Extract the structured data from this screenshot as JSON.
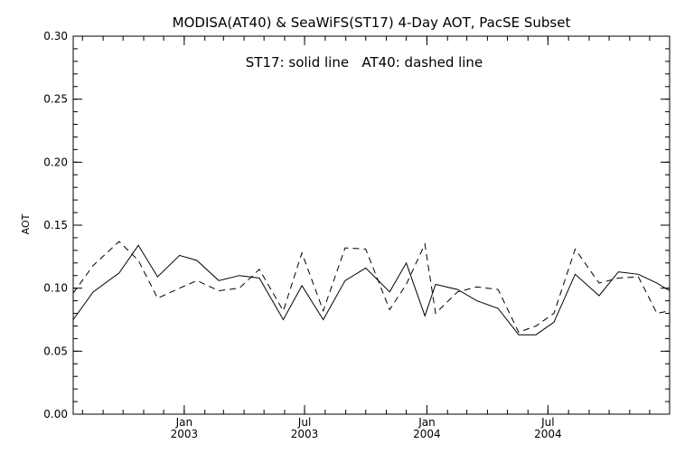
{
  "chart_data": {
    "type": "line",
    "title": "MODISA(AT40) & SeaWiFS(ST17) 4-Day AOT, PacSE Subset",
    "annotation": "ST17: solid line   AT40: dashed line",
    "ylabel": "AOT",
    "xlabel": "",
    "ylim": [
      0.0,
      0.3
    ],
    "yticks": [
      "0.00",
      "0.05",
      "0.10",
      "0.15",
      "0.20",
      "0.25",
      "0.30"
    ],
    "xlim": [
      "2002-07-18",
      "2004-12-31"
    ],
    "xticks": [
      {
        "date": "2003-01-01",
        "label1": "Jan",
        "label2": "2003"
      },
      {
        "date": "2003-07-01",
        "label1": "Jul",
        "label2": "2003"
      },
      {
        "date": "2004-01-01",
        "label1": "Jan",
        "label2": "2004"
      },
      {
        "date": "2004-07-01",
        "label1": "Jul",
        "label2": "2004"
      }
    ],
    "grid": false,
    "series": [
      {
        "name": "ST17",
        "style": "solid",
        "x": [
          "2002-07-18",
          "2002-08-17",
          "2002-09-25",
          "2002-10-24",
          "2002-11-22",
          "2002-12-25",
          "2003-01-20",
          "2003-02-22",
          "2003-03-25",
          "2003-04-24",
          "2003-05-30",
          "2003-06-27",
          "2003-07-29",
          "2003-08-31",
          "2003-10-01",
          "2003-11-06",
          "2003-12-01",
          "2003-12-29",
          "2004-01-14",
          "2004-02-16",
          "2004-03-16",
          "2004-04-17",
          "2004-05-18",
          "2004-06-13",
          "2004-07-10",
          "2004-08-11",
          "2004-09-16",
          "2004-10-15",
          "2004-11-14",
          "2004-12-12",
          "2004-12-31"
        ],
        "values": [
          0.075,
          0.097,
          0.112,
          0.134,
          0.109,
          0.126,
          0.122,
          0.106,
          0.11,
          0.108,
          0.075,
          0.102,
          0.075,
          0.106,
          0.116,
          0.097,
          0.12,
          0.078,
          0.103,
          0.099,
          0.09,
          0.084,
          0.063,
          0.063,
          0.073,
          0.111,
          0.094,
          0.113,
          0.111,
          0.104,
          0.098
        ]
      },
      {
        "name": "AT40",
        "style": "dashed",
        "x": [
          "2002-07-18",
          "2002-08-17",
          "2002-09-25",
          "2002-10-24",
          "2002-11-22",
          "2002-12-25",
          "2003-01-20",
          "2003-02-22",
          "2003-03-25",
          "2003-04-24",
          "2003-05-30",
          "2003-06-27",
          "2003-07-29",
          "2003-08-31",
          "2003-10-01",
          "2003-11-06",
          "2003-12-01",
          "2003-12-29",
          "2004-01-14",
          "2004-02-16",
          "2004-03-16",
          "2004-04-17",
          "2004-05-18",
          "2004-06-13",
          "2004-07-10",
          "2004-08-11",
          "2004-09-16",
          "2004-10-15",
          "2004-11-14",
          "2004-12-12",
          "2004-12-31"
        ],
        "values": [
          0.096,
          0.118,
          0.137,
          0.122,
          0.092,
          0.1,
          0.106,
          0.098,
          0.1,
          0.115,
          0.082,
          0.128,
          0.082,
          0.132,
          0.131,
          0.083,
          0.103,
          0.135,
          0.08,
          0.097,
          0.101,
          0.099,
          0.065,
          0.07,
          0.08,
          0.131,
          0.104,
          0.108,
          0.109,
          0.08,
          0.082
        ]
      }
    ]
  }
}
